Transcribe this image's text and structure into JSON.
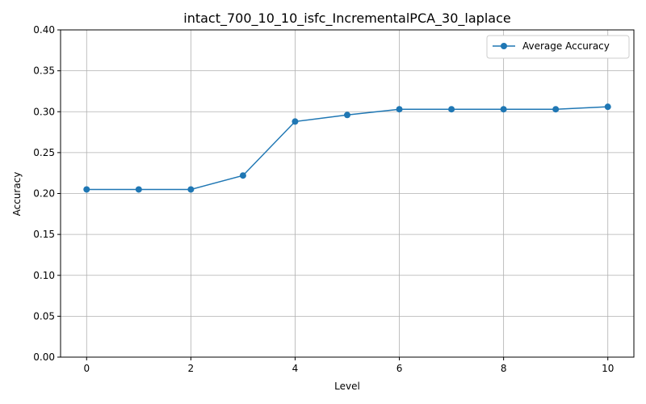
{
  "chart_data": {
    "type": "line",
    "title": "intact_700_10_10_isfc_IncrementalPCA_30_laplace",
    "xlabel": "Level",
    "ylabel": "Accuracy",
    "xlim": [
      -0.5,
      10.5
    ],
    "ylim": [
      0.0,
      0.4
    ],
    "x_ticks": [
      0,
      2,
      4,
      6,
      8,
      10
    ],
    "x_tick_labels": [
      "0",
      "2",
      "4",
      "6",
      "8",
      "10"
    ],
    "y_ticks": [
      0.0,
      0.05,
      0.1,
      0.15,
      0.2,
      0.25,
      0.3,
      0.35,
      0.4
    ],
    "y_tick_labels": [
      "0.00",
      "0.05",
      "0.10",
      "0.15",
      "0.20",
      "0.25",
      "0.30",
      "0.35",
      "0.40"
    ],
    "grid": true,
    "legend_position": "top-right",
    "x": [
      0,
      1,
      2,
      3,
      4,
      5,
      6,
      7,
      8,
      9,
      10
    ],
    "series": [
      {
        "name": "Average Accuracy",
        "color": "#1f77b4",
        "marker": "circle",
        "values": [
          0.205,
          0.205,
          0.205,
          0.222,
          0.288,
          0.296,
          0.303,
          0.303,
          0.303,
          0.303,
          0.306
        ]
      }
    ]
  }
}
